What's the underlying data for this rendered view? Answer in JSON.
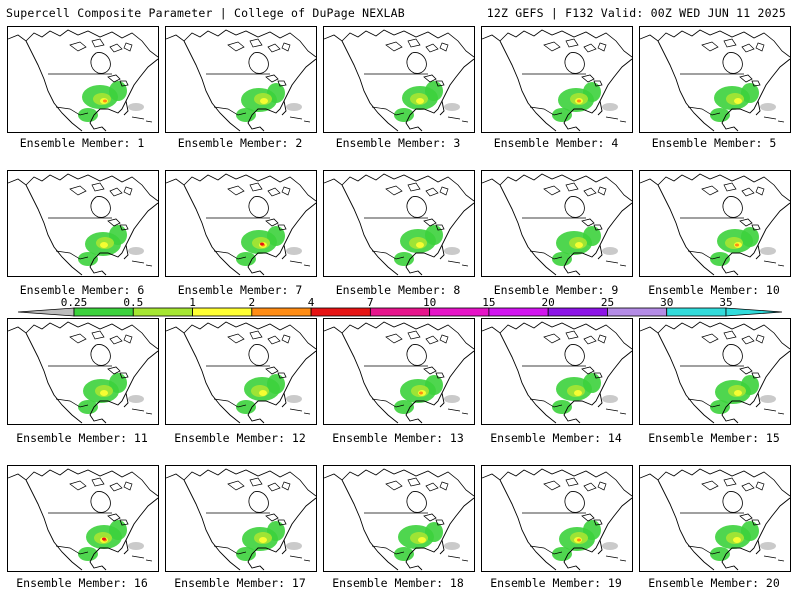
{
  "header": {
    "title": "Supercell Composite Parameter | College of DuPage NEXLAB",
    "run_info": "12Z GEFS | F132 Valid: 00Z WED JUN 11 2025"
  },
  "members": [
    {
      "label": "Ensemble Member: 1"
    },
    {
      "label": "Ensemble Member: 2"
    },
    {
      "label": "Ensemble Member: 3"
    },
    {
      "label": "Ensemble Member: 4"
    },
    {
      "label": "Ensemble Member: 5"
    },
    {
      "label": "Ensemble Member: 6"
    },
    {
      "label": "Ensemble Member: 7"
    },
    {
      "label": "Ensemble Member: 8"
    },
    {
      "label": "Ensemble Member: 9"
    },
    {
      "label": "Ensemble Member: 10"
    },
    {
      "label": "Ensemble Member: 11"
    },
    {
      "label": "Ensemble Member: 12"
    },
    {
      "label": "Ensemble Member: 13"
    },
    {
      "label": "Ensemble Member: 14"
    },
    {
      "label": "Ensemble Member: 15"
    },
    {
      "label": "Ensemble Member: 16"
    },
    {
      "label": "Ensemble Member: 17"
    },
    {
      "label": "Ensemble Member: 18"
    },
    {
      "label": "Ensemble Member: 19"
    },
    {
      "label": "Ensemble Member: 20"
    }
  ],
  "color_scale": {
    "ticks": [
      "0.25",
      "0.5",
      "1",
      "2",
      "4",
      "7",
      "10",
      "15",
      "20",
      "25",
      "30",
      "35"
    ],
    "colors": [
      "#bdbdbd",
      "#3cd23c",
      "#a6e632",
      "#ffff32",
      "#ff8c14",
      "#e61414",
      "#e6148c",
      "#e614c8",
      "#d214f0",
      "#8c14e6",
      "#b48ce6",
      "#32dcdc"
    ]
  }
}
